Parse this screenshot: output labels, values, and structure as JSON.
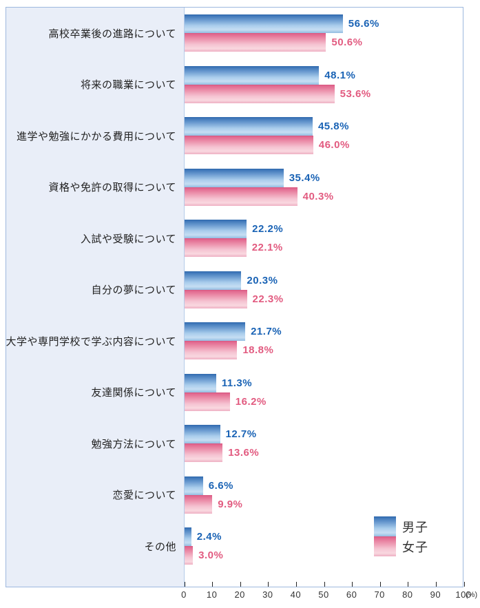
{
  "chart_data": {
    "type": "bar",
    "orientation": "horizontal",
    "title": "",
    "categories": [
      "高校卒業後の進路について",
      "将来の職業について",
      "進学や勉強にかかる費用について",
      "資格や免許の取得について",
      "入試や受験について",
      "自分の夢について",
      "大学や専門学校で学ぶ内容について",
      "友達関係について",
      "勉強方法について",
      "恋愛について",
      "その他"
    ],
    "series": [
      {
        "name": "男子",
        "key": "male",
        "values": [
          56.6,
          48.1,
          45.8,
          35.4,
          22.2,
          20.3,
          21.7,
          11.3,
          12.7,
          6.6,
          2.4
        ]
      },
      {
        "name": "女子",
        "key": "female",
        "values": [
          50.6,
          53.6,
          46.0,
          40.3,
          22.1,
          22.3,
          18.8,
          16.2,
          13.6,
          9.9,
          3.0
        ]
      }
    ],
    "value_suffix": "%",
    "xlim": [
      0,
      100
    ],
    "x_ticks": [
      0,
      10,
      20,
      30,
      40,
      50,
      60,
      70,
      80,
      90,
      100
    ],
    "x_axis_unit": "(%)",
    "grid": false,
    "legend_position": "bottom-right"
  },
  "colors": {
    "male_value_text": "#1a63b5",
    "female_value_text": "#e25b80",
    "category_text": "#222222",
    "axis_text": "#333333",
    "panel_bg": "#e9eef8",
    "box_border": "#9db8de",
    "male_bar_gradient": [
      "#2f68ac 0%",
      "#4078ba 8%",
      "#6f9ed2 32%",
      "#a9cdec 60%",
      "#c6def3 82%",
      "#93bde1 100%"
    ],
    "female_bar_gradient": [
      "#d95680 0%",
      "#e26a90 8%",
      "#ec92ac 32%",
      "#f5c4d2 62%",
      "#f9d8e0 84%",
      "#eeafc2 100%"
    ]
  }
}
